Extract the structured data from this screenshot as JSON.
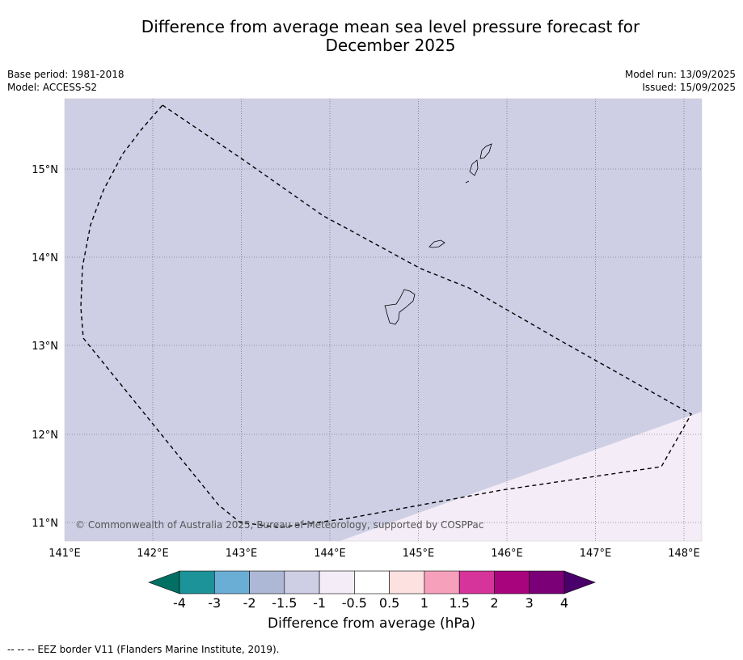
{
  "title_line1": "Difference from average mean sea level pressure forecast for",
  "title_line2": "December 2025",
  "base_period": "Base period: 1981-2018",
  "model": "Model: ACCESS-S2",
  "model_run": "Model run: 13/09/2025",
  "issued": "Issued: 15/09/2025",
  "copyright": "© Commonwealth of Australia 2025, Bureau of Meteorology, supported by COSPPac",
  "footnote": "--  --  -- EEZ border V11 (Flanders Marine Institute, 2019).",
  "colorbar": {
    "label": "Difference from average (hPa)",
    "tick_labels": [
      "-4",
      "-3",
      "-2",
      "-1.5",
      "-1",
      "-0.5",
      "0.5",
      "1",
      "1.5",
      "2",
      "3",
      "4"
    ],
    "colors": [
      "#1c9399",
      "#6aaed6",
      "#adb8d6",
      "#cecfe5",
      "#f4ecf6",
      "#ffffff",
      "#fde0e0",
      "#f6a0bc",
      "#d6349b",
      "#a8047d",
      "#7b0078"
    ],
    "extend_low": "#016f62",
    "extend_high": "#49006a"
  },
  "map": {
    "lon_range": [
      141,
      148.2
    ],
    "lat_range": [
      10.8,
      15.8
    ],
    "lon_labels": [
      "141°E",
      "142°E",
      "143°E",
      "144°E",
      "145°E",
      "146°E",
      "147°E",
      "148°E"
    ],
    "lat_labels": [
      "15°N",
      "14°N",
      "13°N",
      "12°N",
      "11°N"
    ],
    "field": {
      "category": "-1.5 to -1",
      "color": "#cecfe5",
      "southeast_category": "-1 to -0.5",
      "southeast_color": "#f4ecf6"
    }
  }
}
